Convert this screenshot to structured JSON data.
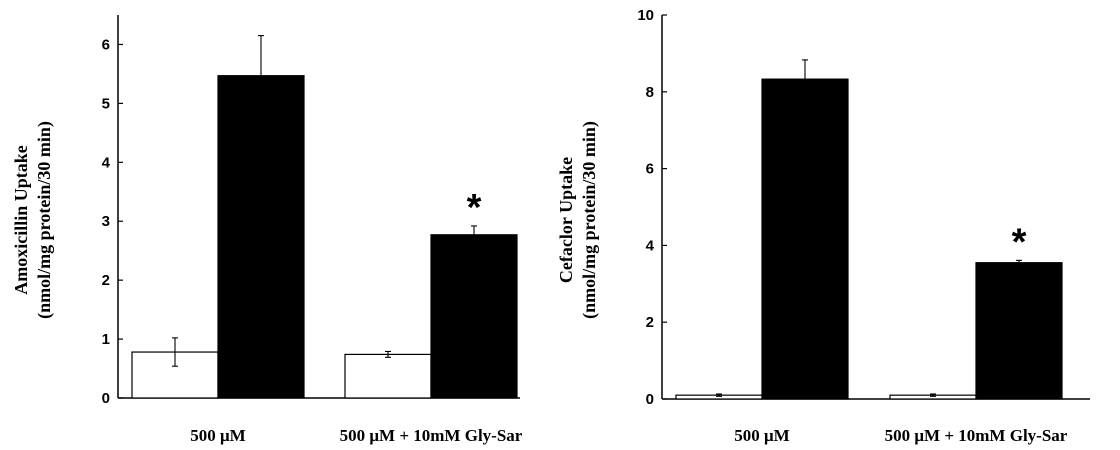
{
  "chart_data": [
    {
      "type": "bar",
      "categories": [
        "500 μM",
        "500 μM + 10mM Gly-Sar"
      ],
      "ylabel_line1": "Amoxicillin Uptake",
      "ylabel_line2": "(nmol/mg protein/30 min)",
      "ylim": [
        0,
        6.5
      ],
      "yticks": [
        0,
        1,
        2,
        3,
        4,
        5,
        6
      ],
      "grid": false,
      "series": [
        {
          "color": "#ffffff",
          "values": [
            0.78,
            0.74
          ],
          "errors": [
            0.24,
            0.05
          ]
        },
        {
          "color": "#000000",
          "values": [
            5.47,
            2.77
          ],
          "errors": [
            0.68,
            0.15
          ]
        }
      ],
      "annotations": [
        {
          "category_index": 1,
          "series_index": 1,
          "text": "*"
        }
      ]
    },
    {
      "type": "bar",
      "categories": [
        "500 μM",
        "500 μM + 10mM Gly-Sar"
      ],
      "ylabel_line1": "Cefaclor Uptake",
      "ylabel_line2": "(nmol/mg protein/30 min)",
      "ylim": [
        0,
        10
      ],
      "yticks": [
        0,
        2,
        4,
        6,
        8,
        10
      ],
      "grid": false,
      "series": [
        {
          "color": "#ffffff",
          "values": [
            0.1,
            0.1
          ],
          "errors": [
            0.03,
            0.03
          ]
        },
        {
          "color": "#000000",
          "values": [
            8.33,
            3.55
          ],
          "errors": [
            0.5,
            0.06
          ]
        }
      ],
      "annotations": [
        {
          "category_index": 1,
          "series_index": 1,
          "text": "*"
        }
      ]
    }
  ]
}
